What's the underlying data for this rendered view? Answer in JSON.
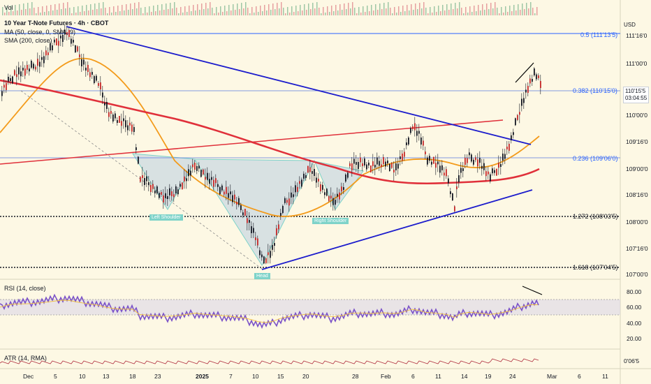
{
  "header": {
    "vol_label": "Vol",
    "title": "10 Year T-Note Futures · 4h · CBOT",
    "ma50_label": "MA (50, close, 0, SMA, 9)",
    "sma200_label": "SMA (200, close)",
    "currency": "USD"
  },
  "price_axis": {
    "ticks": [
      "111'16'0",
      "111'00'0",
      "110'00'0",
      "109'16'0",
      "109'00'0",
      "108'16'0",
      "108'00'0",
      "107'16'0",
      "107'00'0"
    ],
    "current_price": "110'15'5",
    "countdown": "03:04:55"
  },
  "fib_levels": [
    {
      "ratio": "0.5",
      "value": "(111'13'5)",
      "color": "#2962ff"
    },
    {
      "ratio": "0.382",
      "value": "(110'15'0)",
      "color": "#2962ff"
    },
    {
      "ratio": "0.236",
      "value": "(109'06'0)",
      "color": "#2962ff"
    },
    {
      "ratio": "1.272",
      "value": "(108'03'5)",
      "color": "#131722"
    },
    {
      "ratio": "1.618",
      "value": "(107'04'5)",
      "color": "#131722"
    }
  ],
  "pattern_labels": {
    "left_shoulder": "Left Shoulder",
    "head": "Head",
    "right_shoulder": "Right Shoulder"
  },
  "rsi": {
    "label": "RSI (14, close)",
    "ticks": [
      "80.00",
      "60.00",
      "40.00",
      "20.00"
    ]
  },
  "atr": {
    "label": "ATR (14, RMA)",
    "value": "0'06'5"
  },
  "time_axis": {
    "labels": [
      "Dec",
      "5",
      "10",
      "13",
      "18",
      "23",
      "2025",
      "7",
      "10",
      "15",
      "20",
      "28",
      "Feb",
      "6",
      "11",
      "14",
      "19",
      "24",
      "Mar",
      "6",
      "11"
    ]
  },
  "colors": {
    "background": "#fdf8e4",
    "up_candle": "#131722",
    "trend_blue": "#1c1ccc",
    "sma200": "#e0303a",
    "ma50": "#f39b1b",
    "rsi_line": "#7b52c8",
    "pattern_fill": "#b9cde0",
    "atr": "#b03040"
  }
}
